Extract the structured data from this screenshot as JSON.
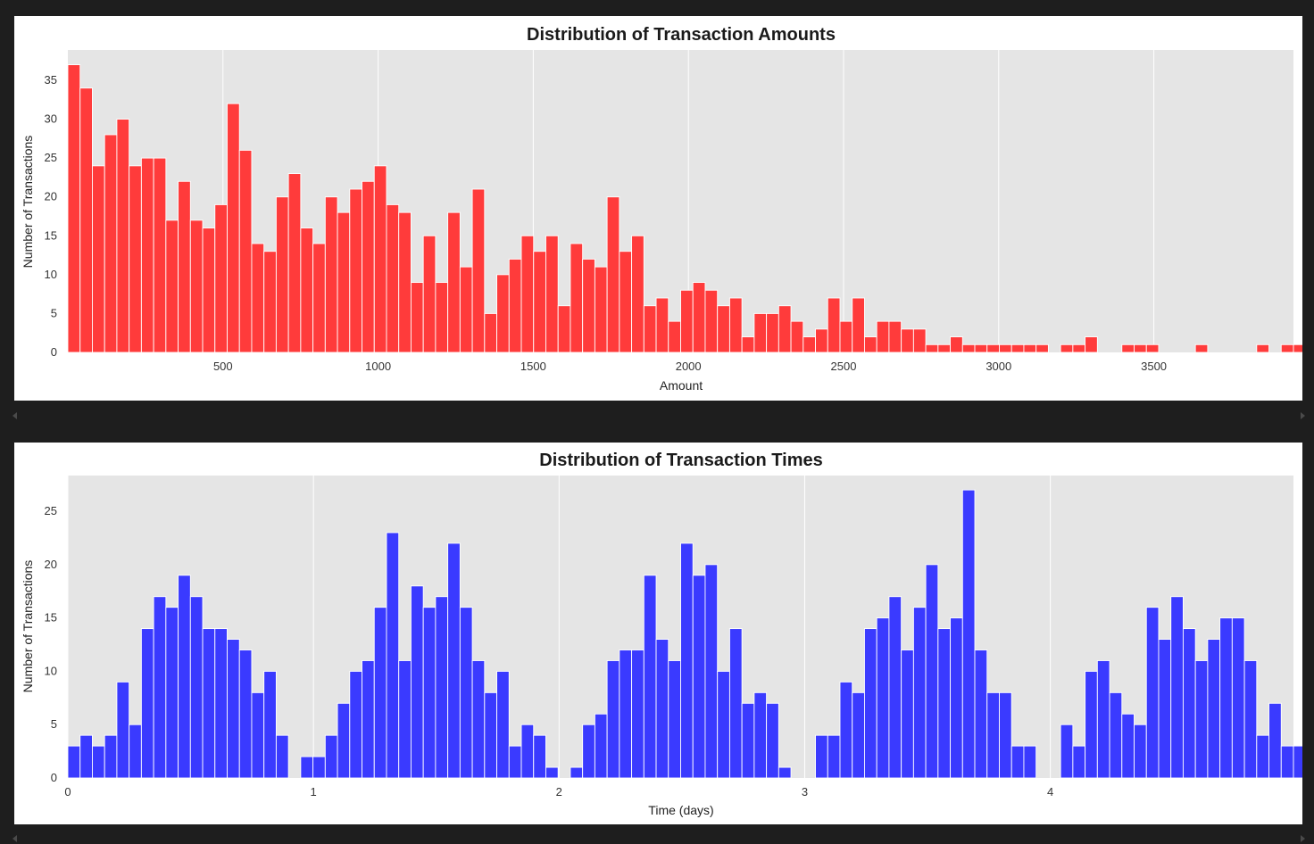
{
  "colors": {
    "page_background": "#1e1e1e",
    "panel_background": "#ffffff",
    "plot_background": "#e5e5e5",
    "grid": "#ffffff",
    "amount_bars": "#ff3b3b",
    "time_bars": "#3a3aff"
  },
  "chart_data": [
    {
      "type": "bar",
      "title": "Distribution of Transaction Amounts",
      "xlabel": "Amount",
      "ylabel": "Number of Transactions",
      "xlim": [
        0,
        3950
      ],
      "ylim": [
        0,
        38.9
      ],
      "xticks": [
        500,
        1000,
        1500,
        2000,
        2500,
        3000,
        3500
      ],
      "yticks": [
        0,
        5,
        10,
        15,
        20,
        25,
        30,
        35
      ],
      "bin_width": 39.5,
      "bin_start": 0,
      "grid": "vertical",
      "values": [
        37,
        34,
        24,
        28,
        30,
        24,
        25,
        25,
        17,
        22,
        17,
        16,
        19,
        32,
        26,
        14,
        13,
        20,
        23,
        16,
        14,
        20,
        18,
        21,
        22,
        24,
        19,
        18,
        9,
        15,
        9,
        18,
        11,
        21,
        5,
        10,
        12,
        15,
        13,
        15,
        6,
        14,
        12,
        11,
        20,
        13,
        15,
        6,
        7,
        4,
        8,
        9,
        8,
        6,
        7,
        2,
        5,
        5,
        6,
        4,
        2,
        3,
        7,
        4,
        7,
        2,
        4,
        4,
        3,
        3,
        1,
        1,
        2,
        1,
        1,
        1,
        1,
        1,
        1,
        1,
        0,
        1,
        1,
        2,
        0,
        0,
        1,
        1,
        1,
        0,
        0,
        0,
        1,
        0,
        0,
        0,
        0,
        1,
        0,
        1,
        1
      ]
    },
    {
      "type": "bar",
      "title": "Distribution of Transaction Times",
      "xlabel": "Time (days)",
      "ylabel": "Number of Transactions",
      "xlim": [
        0,
        4.99
      ],
      "ylim": [
        0,
        28.35
      ],
      "xticks": [
        0,
        1,
        2,
        3,
        4
      ],
      "yticks": [
        0,
        5,
        10,
        15,
        20,
        25
      ],
      "bin_width": 0.0499,
      "bin_start": 0,
      "grid": "vertical",
      "values": [
        3,
        4,
        3,
        4,
        9,
        5,
        14,
        17,
        16,
        19,
        17,
        14,
        14,
        13,
        12,
        8,
        10,
        4,
        0,
        2,
        2,
        4,
        7,
        10,
        11,
        16,
        23,
        11,
        18,
        16,
        17,
        22,
        16,
        11,
        8,
        10,
        3,
        5,
        4,
        1,
        0,
        1,
        5,
        6,
        11,
        12,
        12,
        19,
        13,
        11,
        22,
        19,
        20,
        10,
        14,
        7,
        8,
        7,
        1,
        0,
        0,
        4,
        4,
        9,
        8,
        14,
        15,
        17,
        12,
        16,
        20,
        14,
        15,
        27,
        12,
        8,
        8,
        3,
        3,
        0,
        0,
        5,
        3,
        10,
        11,
        8,
        6,
        5,
        16,
        13,
        17,
        14,
        11,
        13,
        15,
        15,
        11,
        4,
        7,
        3,
        3
      ]
    }
  ]
}
